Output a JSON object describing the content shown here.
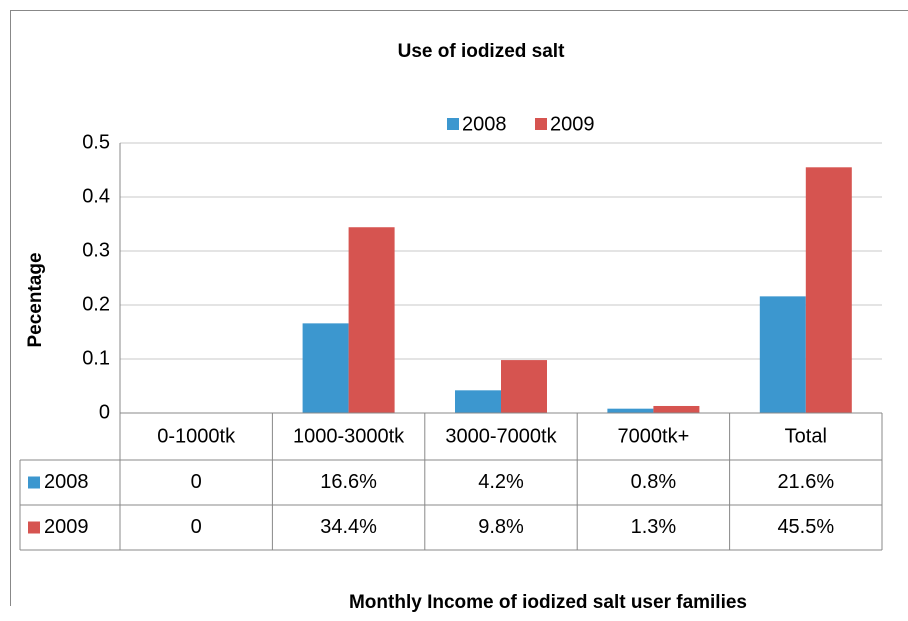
{
  "chart_data": {
    "type": "bar",
    "title": "Use of iodized salt",
    "y_label": "Pecentage",
    "x_label": "Monthly Income of iodized salt user families",
    "categories": [
      "0-1000tk",
      "1000-3000tk",
      "3000-7000tk",
      "7000tk+",
      "Total"
    ],
    "series": [
      {
        "name": "2008",
        "color": "#3c97cf",
        "values": [
          0,
          0.166,
          0.042,
          0.008,
          0.216
        ],
        "value_labels": [
          "0",
          "16.6%",
          "4.2%",
          "0.8%",
          "21.6%"
        ]
      },
      {
        "name": "2009",
        "color": "#d65450",
        "values": [
          0,
          0.344,
          0.098,
          0.013,
          0.455
        ],
        "value_labels": [
          "0",
          "34.4%",
          "9.8%",
          "1.3%",
          "45.5%"
        ]
      }
    ],
    "ylim": [
      0,
      0.5
    ],
    "yticks": [
      0,
      0.1,
      0.2,
      0.3,
      0.4,
      0.5
    ],
    "grid": true,
    "legend": "top"
  }
}
